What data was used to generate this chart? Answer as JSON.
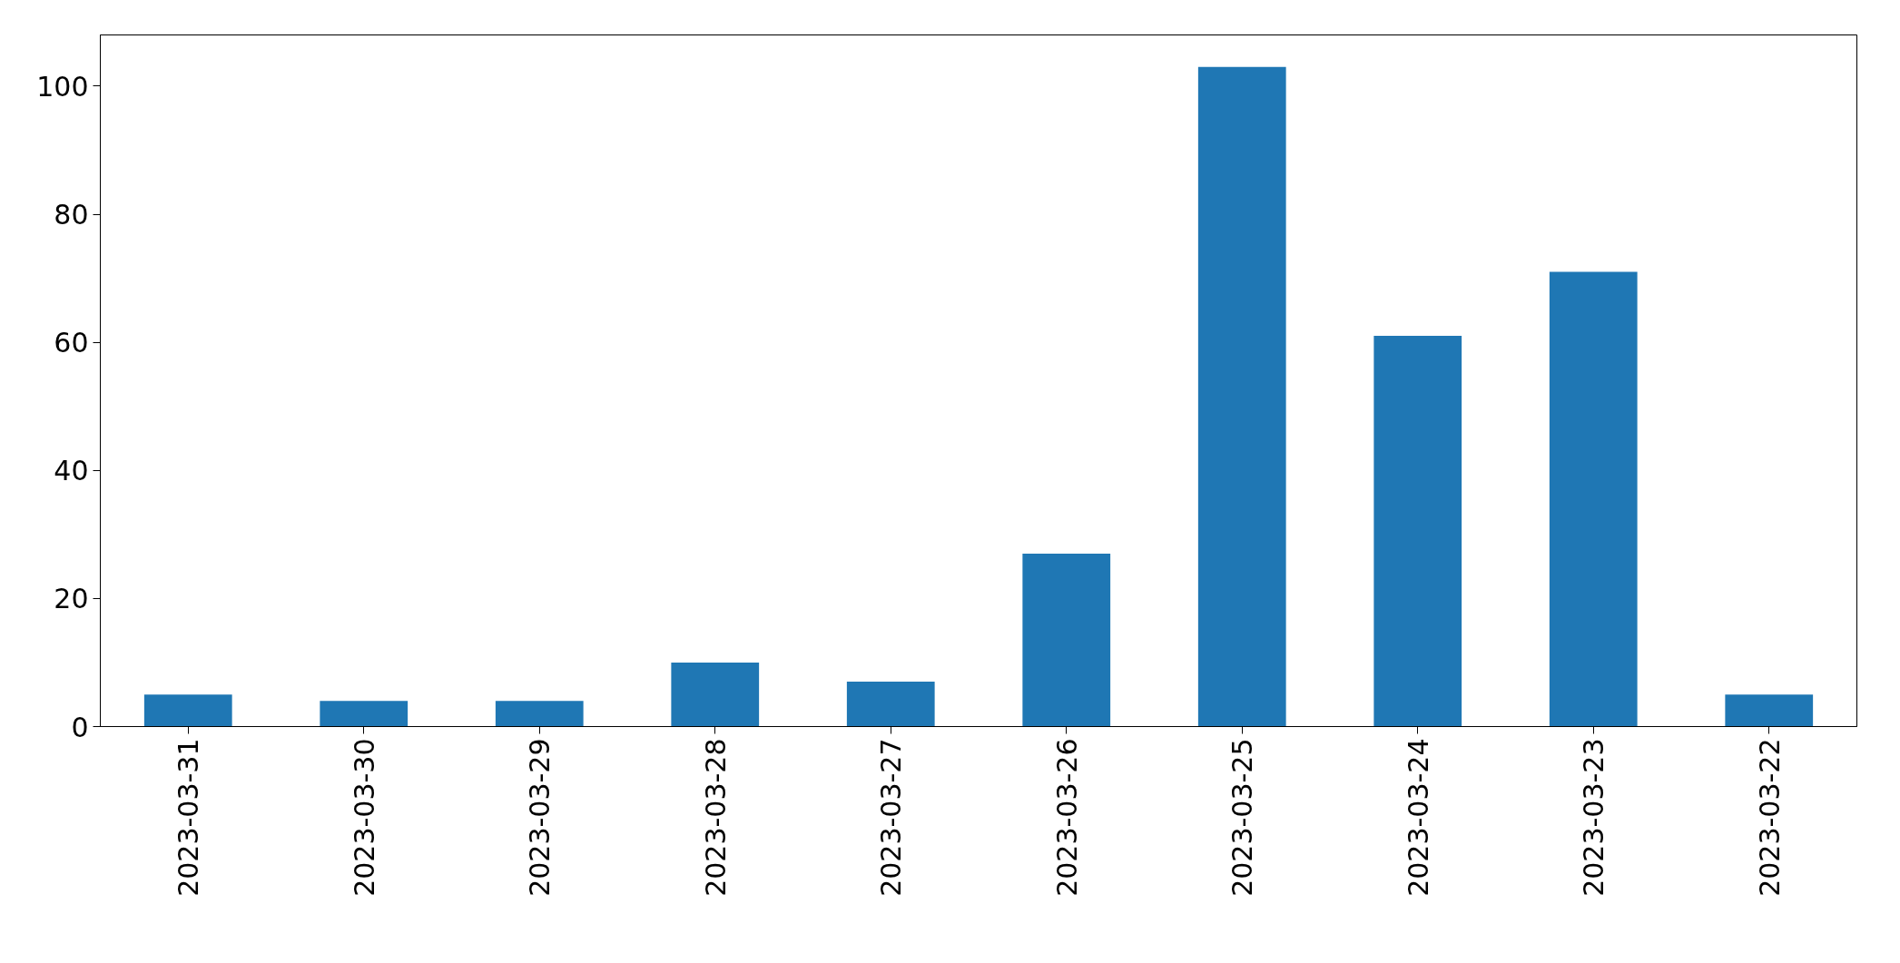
{
  "chart_data": {
    "type": "bar",
    "categories": [
      "2023-03-31",
      "2023-03-30",
      "2023-03-29",
      "2023-03-28",
      "2023-03-27",
      "2023-03-26",
      "2023-03-25",
      "2023-03-24",
      "2023-03-23",
      "2023-03-22"
    ],
    "values": [
      5,
      4,
      4,
      10,
      7,
      27,
      103,
      61,
      71,
      5
    ],
    "color": "#1f77b4",
    "ylim": [
      0,
      108
    ],
    "yticks": [
      0,
      20,
      40,
      60,
      80,
      100
    ],
    "grid": false
  }
}
